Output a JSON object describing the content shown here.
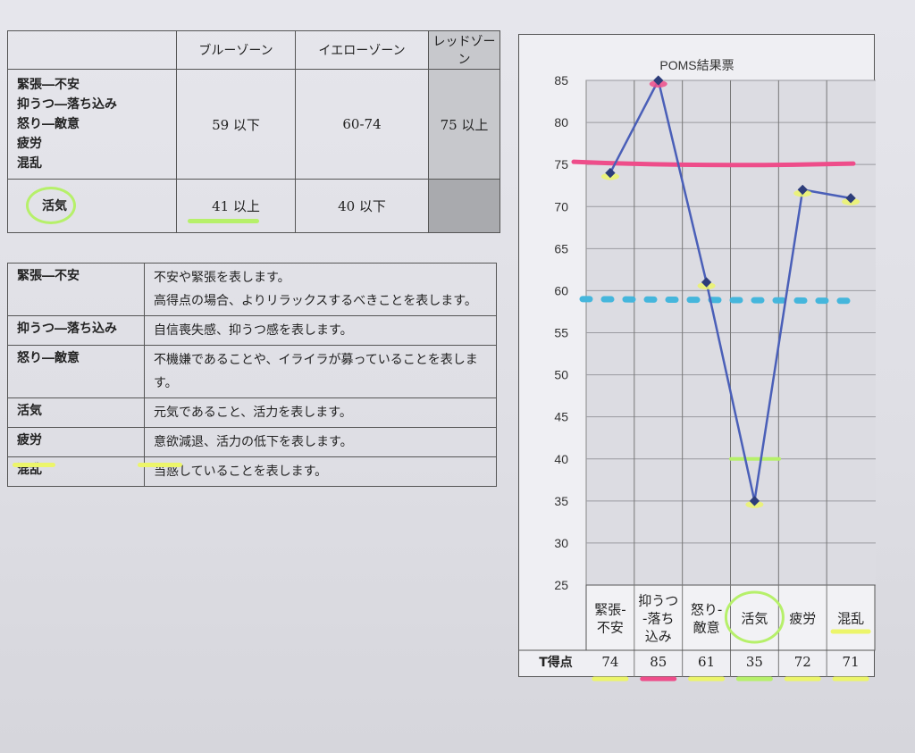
{
  "zone_table": {
    "headers": [
      "",
      "ブルーゾーン",
      "イエローゾーン",
      "レッドゾーン"
    ],
    "row1_labels": [
      "緊張―不安",
      "抑うつ―落ち込み",
      "怒り―敵意",
      "疲労",
      "混乱"
    ],
    "row1_values": [
      "59 以下",
      "60-74",
      "75 以上"
    ],
    "row2_label": "活気",
    "row2_values": [
      "41 以上",
      "40 以下",
      ""
    ]
  },
  "desc_table": {
    "rows": [
      {
        "term": "緊張―不安",
        "lines": [
          "不安や緊張を表します。",
          "高得点の場合、よりリラックスするべきことを表します。"
        ]
      },
      {
        "term": "抑うつ―落ち込み",
        "lines": [
          "自信喪失感、抑うつ感を表します。"
        ]
      },
      {
        "term": "怒り―敵意",
        "lines": [
          "不機嫌であることや、イライラが募っていることを表します。"
        ]
      },
      {
        "term": "活気",
        "lines": [
          "元気であること、活力を表します。"
        ]
      },
      {
        "term": "疲労",
        "lines": [
          "意欲減退、活力の低下を表します。"
        ]
      },
      {
        "term": "混乱",
        "lines": [
          "当惑していることを表します。"
        ]
      }
    ]
  },
  "chart_data": {
    "type": "line",
    "title": "POMS結果票",
    "categories": [
      [
        "緊張-",
        "不安"
      ],
      [
        "抑うつ",
        "-落ち",
        "込み"
      ],
      [
        "怒り-",
        "敵意"
      ],
      [
        "活気"
      ],
      [
        "疲労"
      ],
      [
        "混乱"
      ]
    ],
    "values": [
      74,
      85,
      61,
      35,
      72,
      71
    ],
    "row_label": "T得点",
    "score_labels": [
      "74",
      "85",
      "61",
      "35",
      "72",
      "71"
    ],
    "yticks": [
      "85",
      "80",
      "75",
      "70",
      "65",
      "60",
      "55",
      "50",
      "45",
      "40",
      "35",
      "30",
      "25"
    ],
    "ylim": [
      25,
      85
    ],
    "hand_lines": [
      {
        "value": 75,
        "color": "#ee4d8a",
        "style": "solid"
      },
      {
        "value": 59,
        "color": "#45b6dc",
        "style": "dotted"
      },
      {
        "value": 40,
        "color": "#b6f06a",
        "style": "short"
      }
    ],
    "line_color": "#4a5fb8"
  },
  "colors": {
    "highlight_green": "#b6f06a",
    "highlight_yellow": "#ecf56a",
    "highlight_pink": "#ee4d8a"
  }
}
